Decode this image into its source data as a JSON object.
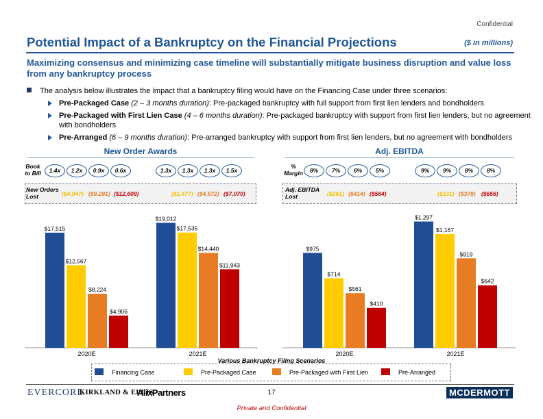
{
  "header": {
    "confidential": "Confidential",
    "title": "Potential Impact of a Bankruptcy on the Financial Projections",
    "units": "($ in millions)",
    "subtitle": "Maximizing consensus and minimizing case timeline will substantially mitigate business disruption and value loss from any bankruptcy process"
  },
  "bullets": {
    "main": "The analysis below illustrates the impact that a bankruptcy filing would have on the Financing Case under three scenarios:",
    "items": [
      {
        "name": "Pre-Packaged Case",
        "duration": "(2 – 3 months duration)",
        "text": ": Pre-packaged bankruptcy with full support from first lien lenders and bondholders"
      },
      {
        "name": "Pre-Packaged with First Lien Case",
        "duration": "(4 – 6 months duration)",
        "text": ": Pre-packaged bankruptcy with support from first lien lenders, but no agreement with bondholders"
      },
      {
        "name": "Pre-Arranged",
        "duration": "(6 – 9 months duration)",
        "text": ": Pre-arranged bankruptcy with support from first lien lenders, but no agreement with bondholders"
      }
    ]
  },
  "left_panel": {
    "title": "New Order Awards",
    "ratio_label": "Book to Bill",
    "ratios_2020": [
      "1.4x",
      "1.2x",
      "0.9x",
      "0.6x"
    ],
    "ratios_2021": [
      "1.3x",
      "1.3x",
      "1.3x",
      "1.5x"
    ],
    "lost_label": "New Orders Lost",
    "lost_2020": [
      "($4,947)",
      "($9,291)",
      "($12,609)"
    ],
    "lost_2021": [
      "($1,477)",
      "($4,572)",
      "($7,070)"
    ]
  },
  "right_panel": {
    "title": "Adj. EBITDA",
    "ratio_label": "% Margin",
    "ratios_2020": [
      "8%",
      "7%",
      "6%",
      "5%"
    ],
    "ratios_2021": [
      "9%",
      "9%",
      "8%",
      "8%"
    ],
    "lost_label": "Adj. EBITDA Lost",
    "lost_2020": [
      "($261)",
      "($414)",
      "($564)"
    ],
    "lost_2021": [
      "($131)",
      "($378)",
      "($656)"
    ]
  },
  "colors": {
    "financing": "#1f4e96",
    "prepackaged": "#ffcc00",
    "prepackaged_fl": "#e87c22",
    "prearranged": "#c00000",
    "brand": "#1f5597"
  },
  "chart_data": [
    {
      "type": "bar",
      "title": "New Order Awards",
      "categories": [
        "2020E",
        "2021E"
      ],
      "ylim": [
        0,
        20000
      ],
      "series": [
        {
          "name": "Financing Case",
          "values": [
            17515,
            19012
          ],
          "labels": [
            "$17,515",
            "$19,012"
          ]
        },
        {
          "name": "Pre-Packaged Case",
          "values": [
            12567,
            17535
          ],
          "labels": [
            "$12,567",
            "$17,535"
          ]
        },
        {
          "name": "Pre-Packaged with First Lien",
          "values": [
            8224,
            14440
          ],
          "labels": [
            "$8,224",
            "$14,440"
          ]
        },
        {
          "name": "Pre-Arranged",
          "values": [
            4906,
            11943
          ],
          "labels": [
            "$4,906",
            "$11,943"
          ]
        }
      ]
    },
    {
      "type": "bar",
      "title": "Adj. EBITDA",
      "categories": [
        "2020E",
        "2021E"
      ],
      "ylim": [
        0,
        1350
      ],
      "series": [
        {
          "name": "Financing Case",
          "values": [
            975,
            1297
          ],
          "labels": [
            "$975",
            "$1,297"
          ]
        },
        {
          "name": "Pre-Packaged Case",
          "values": [
            714,
            1167
          ],
          "labels": [
            "$714",
            "$1,167"
          ]
        },
        {
          "name": "Pre-Packaged with First Lien",
          "values": [
            561,
            919
          ],
          "labels": [
            "$561",
            "$919"
          ]
        },
        {
          "name": "Pre-Arranged",
          "values": [
            410,
            642
          ],
          "labels": [
            "$410",
            "$642"
          ]
        }
      ]
    }
  ],
  "legend": {
    "title": "Various Bankruptcy Filing Scenarios",
    "items": [
      "Financing Case",
      "Pre-Packaged Case",
      "Pre-Packaged with First Lien",
      "Pre-Arranged"
    ]
  },
  "footer": {
    "logo_evercore": "EVERCORE",
    "logo_kirkland": "KIRKLAND & ELLIS",
    "logo_alix": "AlixPartners",
    "logo_mcdermott": "MCDERMOTT",
    "page_number": "17",
    "private": "Private and Confidential"
  }
}
